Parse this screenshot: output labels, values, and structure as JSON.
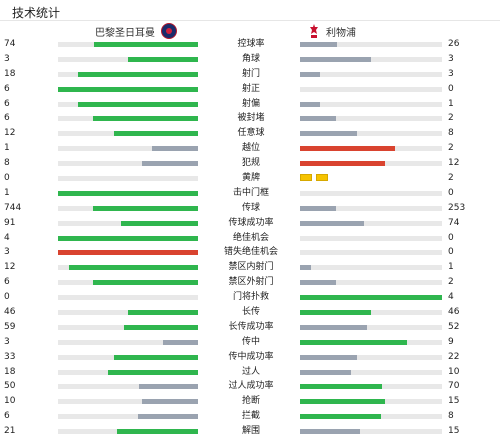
{
  "header": {
    "title": "技术统计"
  },
  "teams": {
    "home": "巴黎圣日耳曼",
    "away": "利物浦"
  },
  "colors": {
    "green": "#2fb64e",
    "grey": "#9aa3b0",
    "red": "#d9432f",
    "yellow": "#f6c300",
    "track": "#e8e8e8"
  },
  "stats": [
    {
      "label": "控球率",
      "home": "74",
      "away": "26",
      "home_fill": 0.74,
      "away_fill": 0.26,
      "home_color": "green",
      "away_color": "grey"
    },
    {
      "label": "角球",
      "home": "3",
      "away": "3",
      "home_fill": 0.5,
      "away_fill": 0.5,
      "home_color": "green",
      "away_color": "grey"
    },
    {
      "label": "射门",
      "home": "18",
      "away": "3",
      "home_fill": 0.86,
      "away_fill": 0.14,
      "home_color": "green",
      "away_color": "grey"
    },
    {
      "label": "射正",
      "home": "6",
      "away": "0",
      "home_fill": 1.0,
      "away_fill": 0.0,
      "home_color": "green",
      "away_color": "grey"
    },
    {
      "label": "射偏",
      "home": "6",
      "away": "1",
      "home_fill": 0.86,
      "away_fill": 0.14,
      "home_color": "green",
      "away_color": "grey"
    },
    {
      "label": "被封堵",
      "home": "6",
      "away": "2",
      "home_fill": 0.75,
      "away_fill": 0.25,
      "home_color": "green",
      "away_color": "grey"
    },
    {
      "label": "任意球",
      "home": "12",
      "away": "8",
      "home_fill": 0.6,
      "away_fill": 0.4,
      "home_color": "green",
      "away_color": "grey"
    },
    {
      "label": "越位",
      "home": "1",
      "away": "2",
      "home_fill": 0.33,
      "away_fill": 0.67,
      "home_color": "grey",
      "away_color": "red"
    },
    {
      "label": "犯规",
      "home": "8",
      "away": "12",
      "home_fill": 0.4,
      "away_fill": 0.6,
      "home_color": "grey",
      "away_color": "red"
    },
    {
      "label": "黄牌",
      "home": "0",
      "away": "2",
      "home_fill": 0.0,
      "away_fill": 0.0,
      "home_color": "grey",
      "away_color": "grey",
      "away_yellow_cards": 2
    },
    {
      "label": "击中门框",
      "home": "1",
      "away": "0",
      "home_fill": 1.0,
      "away_fill": 0.0,
      "home_color": "green",
      "away_color": "grey"
    },
    {
      "label": "传球",
      "home": "744",
      "away": "253",
      "home_fill": 0.75,
      "away_fill": 0.25,
      "home_color": "green",
      "away_color": "grey"
    },
    {
      "label": "传球成功率",
      "home": "91",
      "away": "74",
      "home_fill": 0.55,
      "away_fill": 0.45,
      "home_color": "green",
      "away_color": "grey"
    },
    {
      "label": "绝佳机会",
      "home": "4",
      "away": "0",
      "home_fill": 1.0,
      "away_fill": 0.0,
      "home_color": "green",
      "away_color": "grey"
    },
    {
      "label": "错失绝佳机会",
      "home": "3",
      "away": "0",
      "home_fill": 1.0,
      "away_fill": 0.0,
      "home_color": "red",
      "away_color": "grey"
    },
    {
      "label": "禁区内射门",
      "home": "12",
      "away": "1",
      "home_fill": 0.92,
      "away_fill": 0.08,
      "home_color": "green",
      "away_color": "grey"
    },
    {
      "label": "禁区外射门",
      "home": "6",
      "away": "2",
      "home_fill": 0.75,
      "away_fill": 0.25,
      "home_color": "green",
      "away_color": "grey"
    },
    {
      "label": "门将扑救",
      "home": "0",
      "away": "4",
      "home_fill": 0.0,
      "away_fill": 1.0,
      "home_color": "grey",
      "away_color": "green"
    },
    {
      "label": "长传",
      "home": "46",
      "away": "46",
      "home_fill": 0.5,
      "away_fill": 0.5,
      "home_color": "green",
      "away_color": "green"
    },
    {
      "label": "长传成功率",
      "home": "59",
      "away": "52",
      "home_fill": 0.53,
      "away_fill": 0.47,
      "home_color": "green",
      "away_color": "grey"
    },
    {
      "label": "传中",
      "home": "3",
      "away": "9",
      "home_fill": 0.25,
      "away_fill": 0.75,
      "home_color": "grey",
      "away_color": "green"
    },
    {
      "label": "传中成功率",
      "home": "33",
      "away": "22",
      "home_fill": 0.6,
      "away_fill": 0.4,
      "home_color": "green",
      "away_color": "grey"
    },
    {
      "label": "过人",
      "home": "18",
      "away": "10",
      "home_fill": 0.64,
      "away_fill": 0.36,
      "home_color": "green",
      "away_color": "grey"
    },
    {
      "label": "过人成功率",
      "home": "50",
      "away": "70",
      "home_fill": 0.42,
      "away_fill": 0.58,
      "home_color": "grey",
      "away_color": "green"
    },
    {
      "label": "抢断",
      "home": "10",
      "away": "15",
      "home_fill": 0.4,
      "away_fill": 0.6,
      "home_color": "grey",
      "away_color": "green"
    },
    {
      "label": "拦截",
      "home": "6",
      "away": "8",
      "home_fill": 0.43,
      "away_fill": 0.57,
      "home_color": "grey",
      "away_color": "green"
    },
    {
      "label": "解围",
      "home": "21",
      "away": "15",
      "home_fill": 0.58,
      "away_fill": 0.42,
      "home_color": "green",
      "away_color": "grey"
    }
  ]
}
